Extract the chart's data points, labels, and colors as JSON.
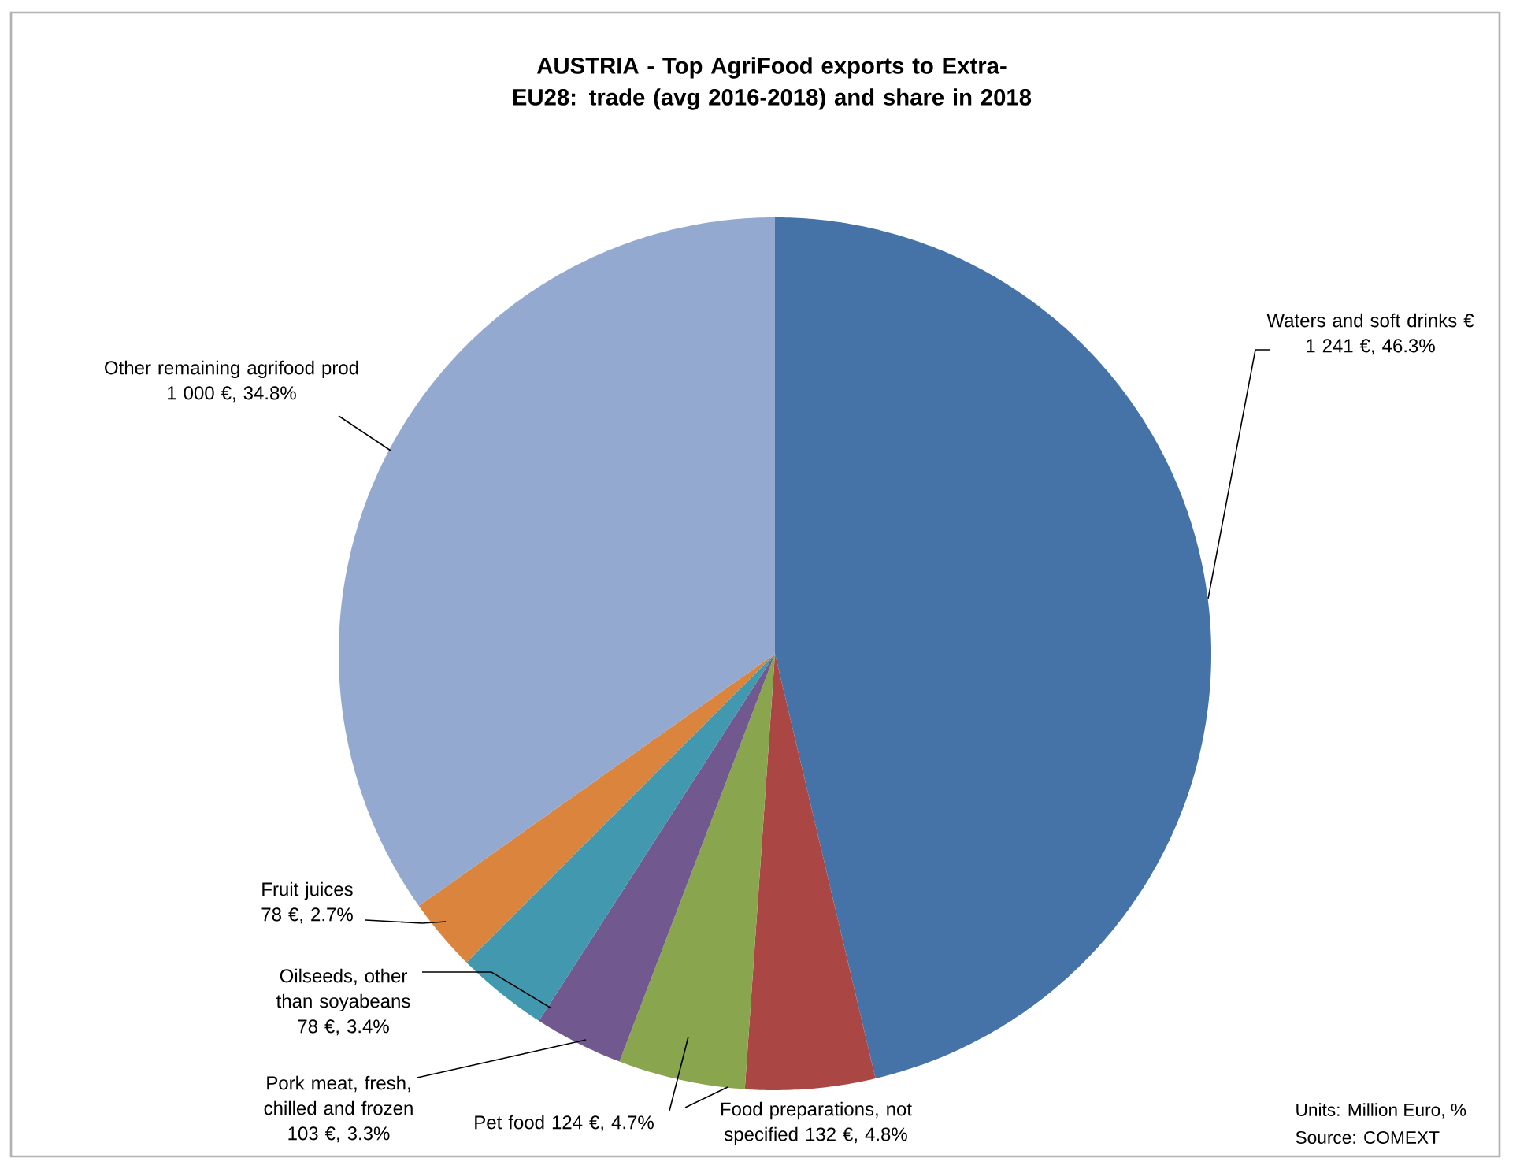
{
  "chart_data": {
    "type": "pie",
    "title": "AUSTRIA - Top AgriFood exports to Extra-EU28: trade (avg 2016-2018) and share in 2018",
    "categories": [
      "Waters and soft drinks €",
      "Food preparations, not specified",
      "Pet food",
      "Pork meat, fresh, chilled and frozen",
      "Oilseeds, other than soyabeans",
      "Fruit juices",
      "Other remaining agrifood prod"
    ],
    "values": [
      46.3,
      4.8,
      4.7,
      3.3,
      3.4,
      2.7,
      34.8
    ],
    "value_labels": [
      "1 241 €, 46.3%",
      "132 €, 4.8%",
      "124 €, 4.7%",
      "103 €, 3.3%",
      "78 €, 3.4%",
      "78 €, 2.7%",
      "1 000 €, 34.8%"
    ],
    "colors": [
      "#4572a7",
      "#aa4643",
      "#89a54e",
      "#71588f",
      "#4198af",
      "#db843d",
      "#93a9cf"
    ],
    "annotations": [
      "Units: Million Euro, %",
      "Source: COMEXT"
    ]
  }
}
